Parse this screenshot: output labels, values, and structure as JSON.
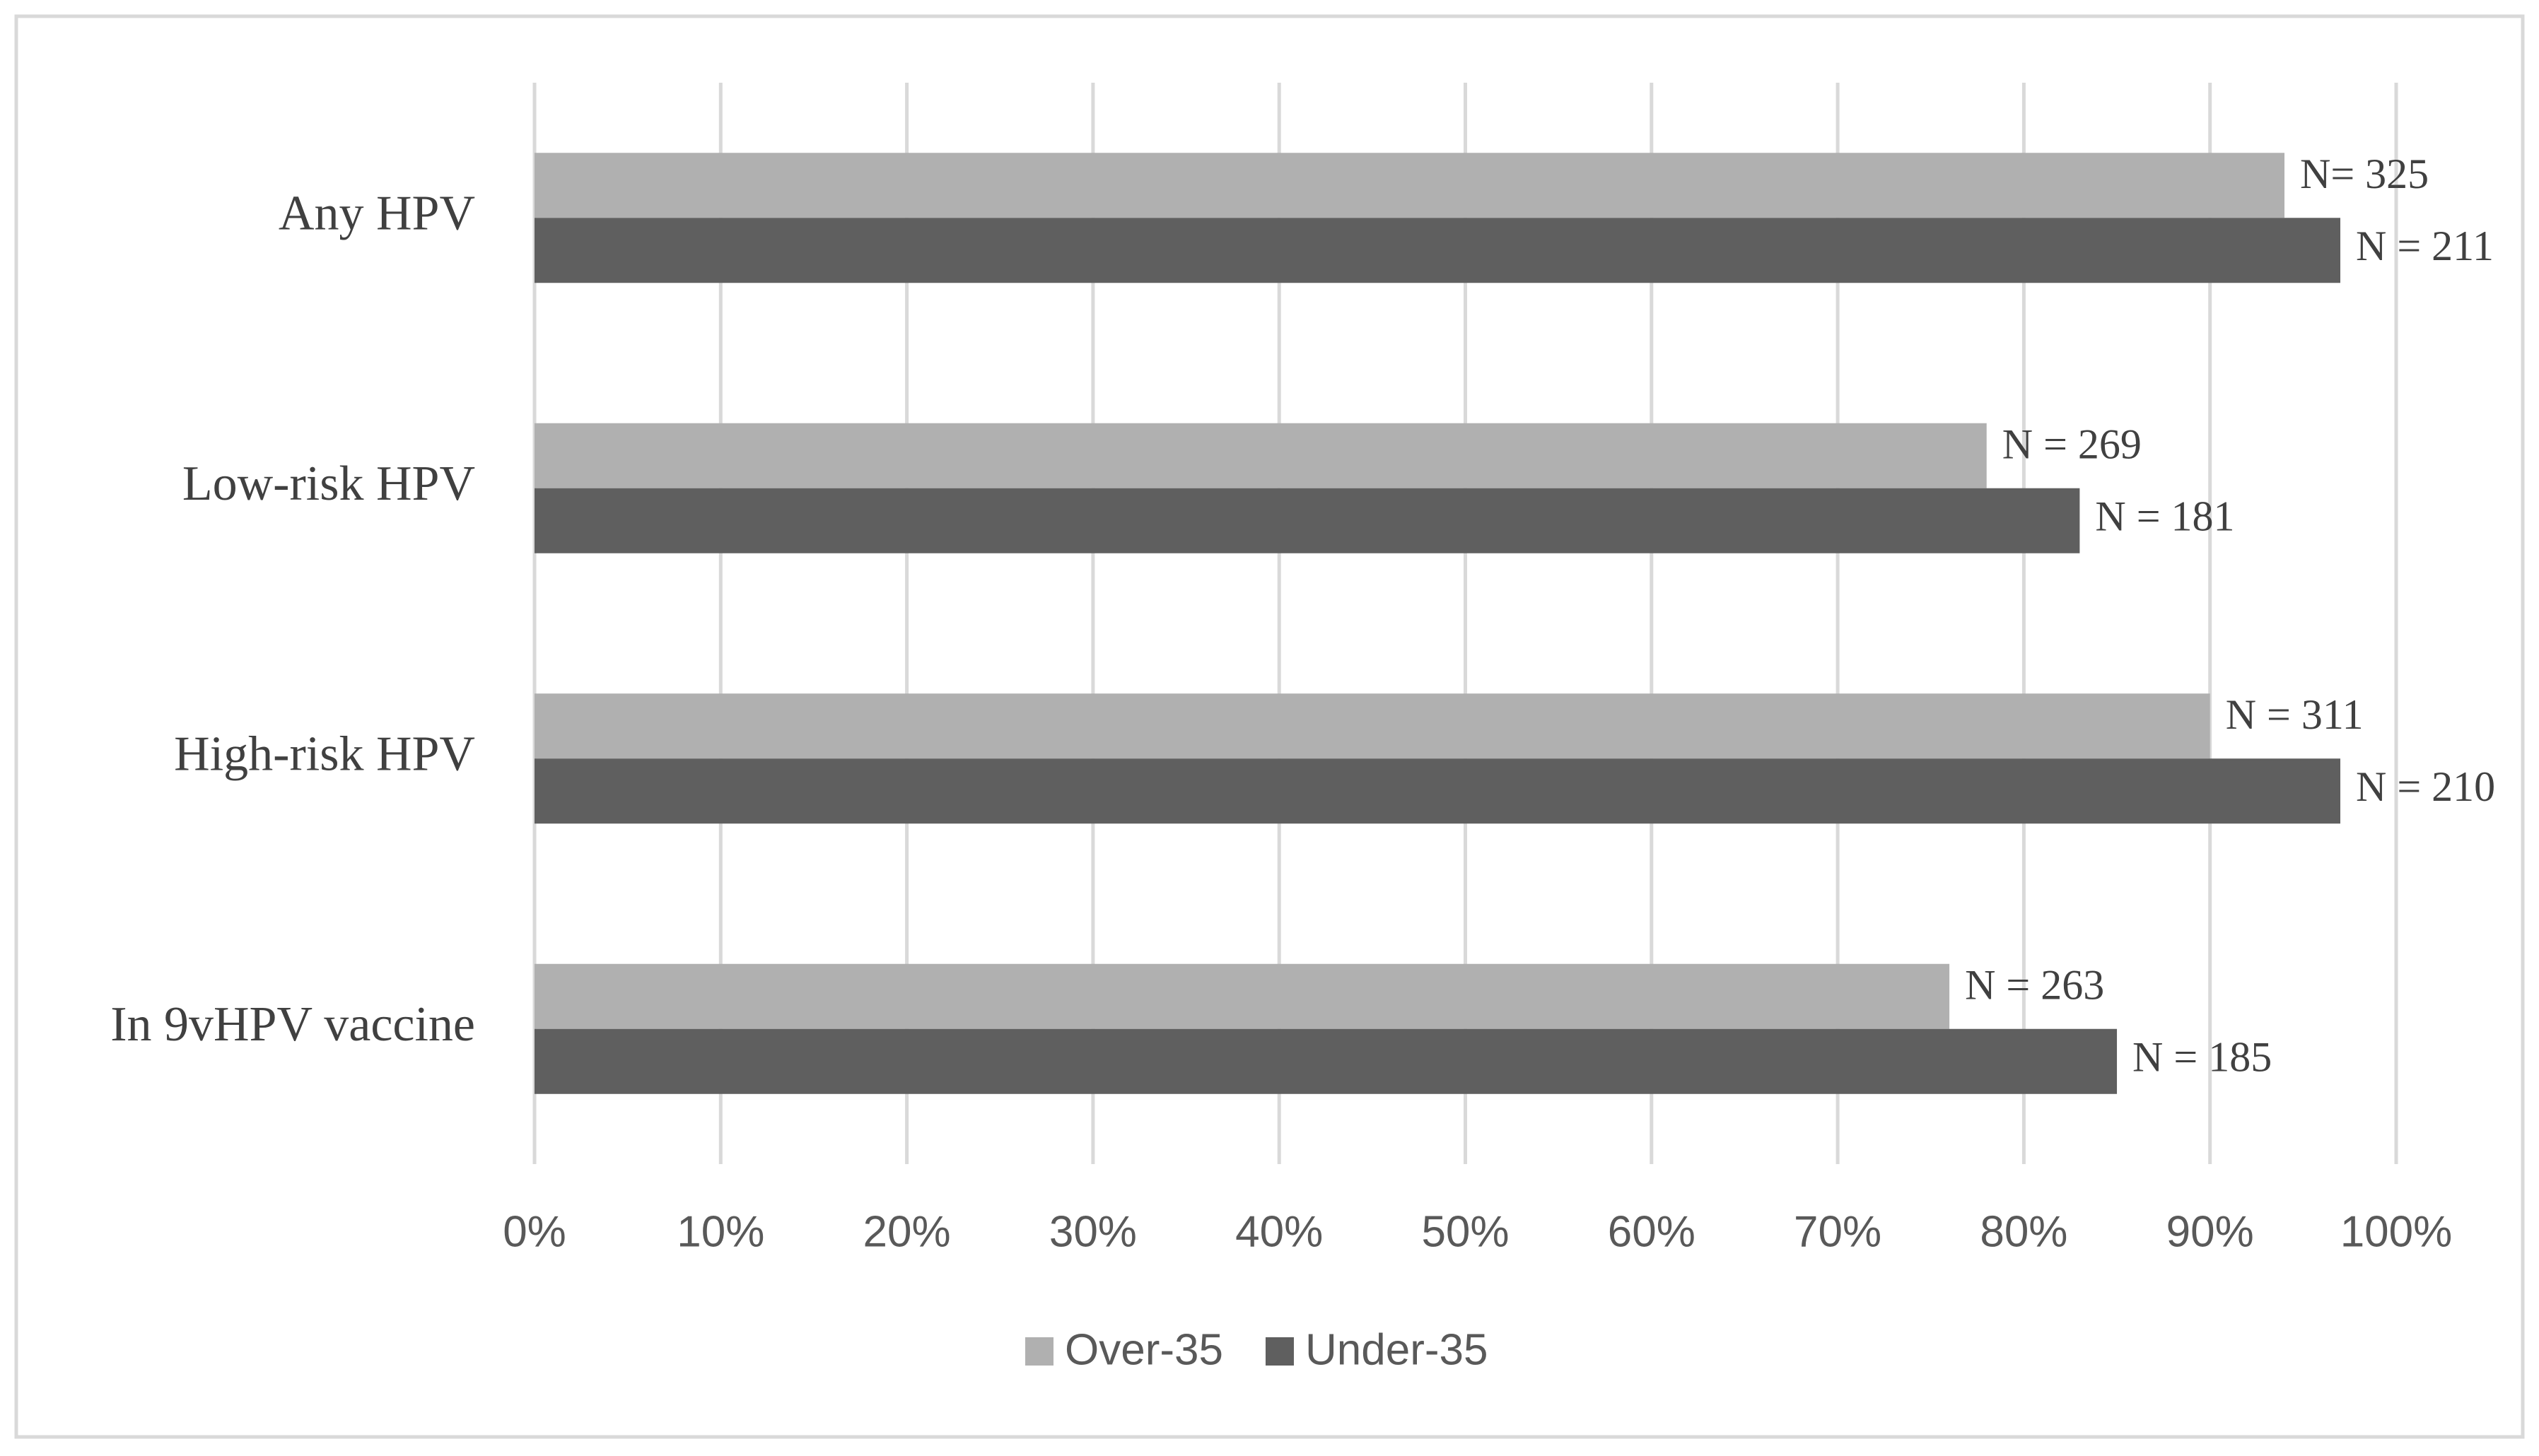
{
  "chart_data": {
    "type": "hbar",
    "categories": [
      "Any HPV",
      "Low-risk HPV",
      "High-risk HPV",
      "In 9vHPV vaccine"
    ],
    "series": [
      {
        "name": "Over-35",
        "color": "#b0b0b0",
        "values": [
          94,
          78,
          90,
          76
        ],
        "annotations": [
          "N= 325",
          "N = 269",
          "N = 311",
          "N = 263"
        ]
      },
      {
        "name": "Under-35",
        "color": "#5f5f5f",
        "values": [
          97,
          83,
          97,
          85
        ],
        "annotations": [
          "N = 211",
          "N = 181",
          "N = 210",
          "N = 185"
        ]
      }
    ],
    "xlim": [
      0,
      100
    ],
    "xticks": [
      {
        "value": 0,
        "label": "0%"
      },
      {
        "value": 10,
        "label": "10%"
      },
      {
        "value": 20,
        "label": "20%"
      },
      {
        "value": 30,
        "label": "30%"
      },
      {
        "value": 40,
        "label": "40%"
      },
      {
        "value": 50,
        "label": "50%"
      },
      {
        "value": 60,
        "label": "60%"
      },
      {
        "value": 70,
        "label": "70%"
      },
      {
        "value": 80,
        "label": "80%"
      },
      {
        "value": 90,
        "label": "90%"
      },
      {
        "value": 100,
        "label": "100%"
      }
    ],
    "grid": true,
    "legend": "bottom"
  }
}
